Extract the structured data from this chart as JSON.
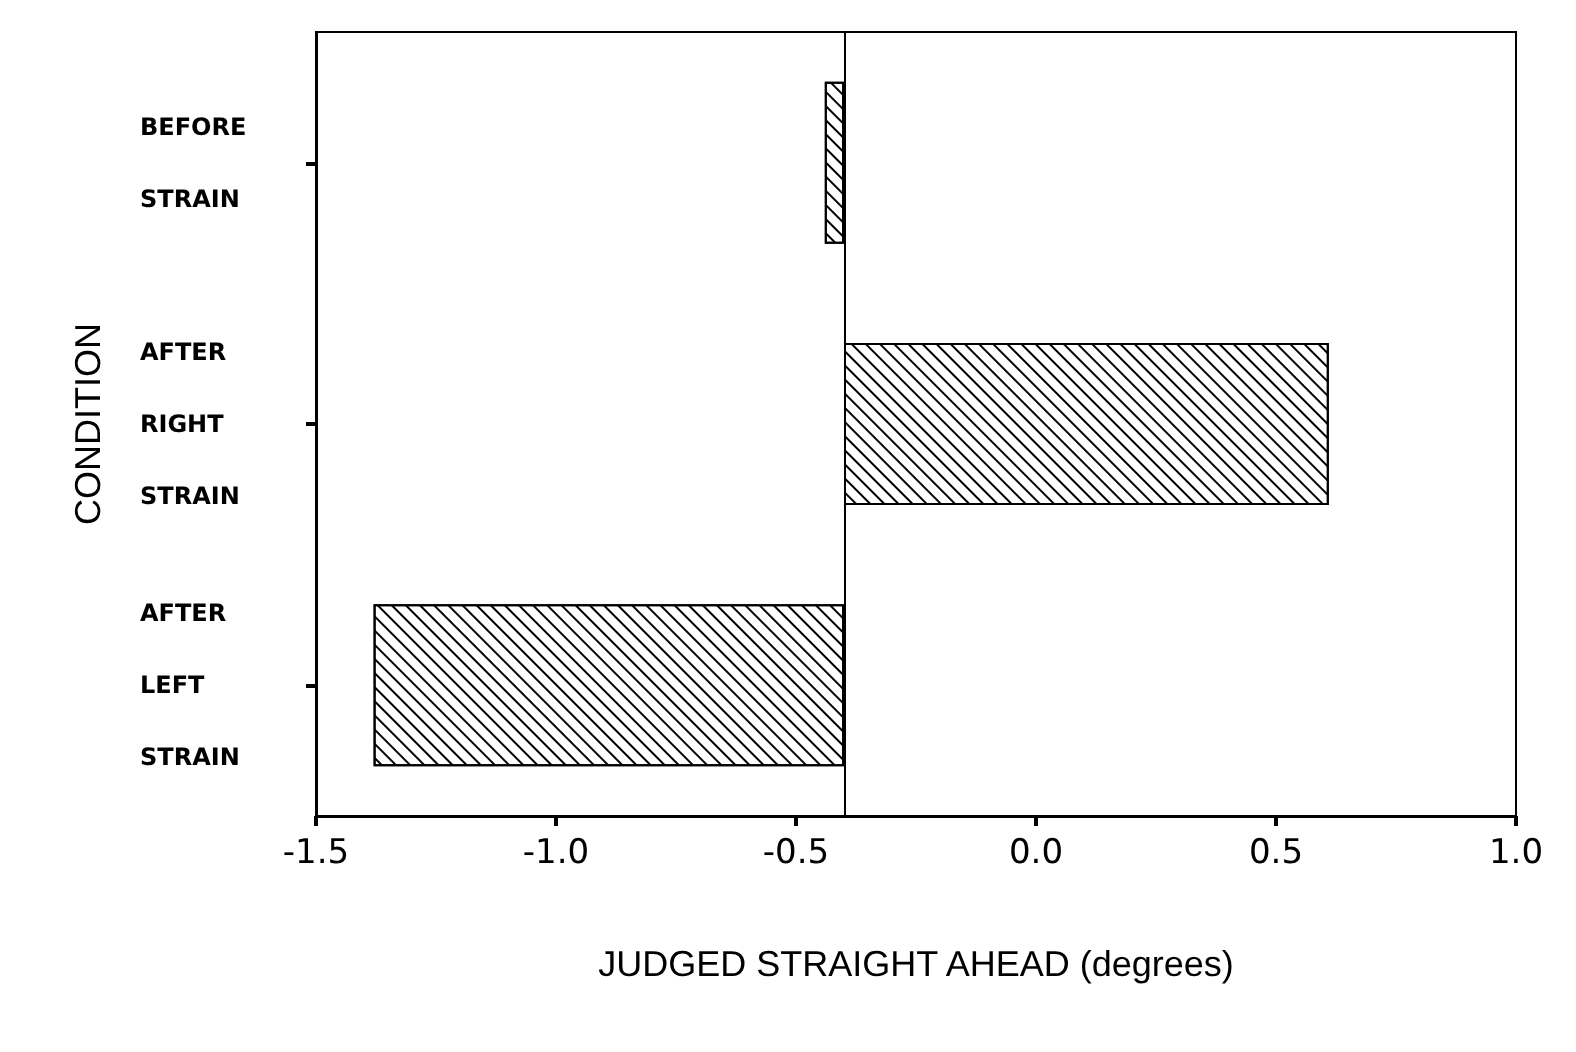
{
  "chart_data": {
    "type": "bar",
    "orientation": "horizontal",
    "xlabel": "JUDGED STRAIGHT AHEAD (degrees)",
    "ylabel": "CONDITION",
    "categories": [
      "BEFORE\nSTRAIN",
      "AFTER\nRIGHT\nSTRAIN",
      "AFTER\nLEFT\nSTRAIN"
    ],
    "values": [
      -0.04,
      1.01,
      -0.98
    ],
    "base": [
      -0.4,
      -0.4,
      -0.4
    ],
    "color": "#000000",
    "xlim": [
      -1.5,
      1.0
    ],
    "xticks": [
      {
        "value": -1.5,
        "label": "-1.5"
      },
      {
        "value": -1,
        "label": "-1.0"
      },
      {
        "value": -0.5,
        "label": "-0.5"
      },
      {
        "value": 0,
        "label": "0.0"
      },
      {
        "value": 0.5,
        "label": "0.5"
      },
      {
        "value": 1,
        "label": "1.0"
      }
    ],
    "ref_lines": [
      {
        "axis": "x",
        "value": -0.4,
        "color": "#000000"
      }
    ]
  }
}
